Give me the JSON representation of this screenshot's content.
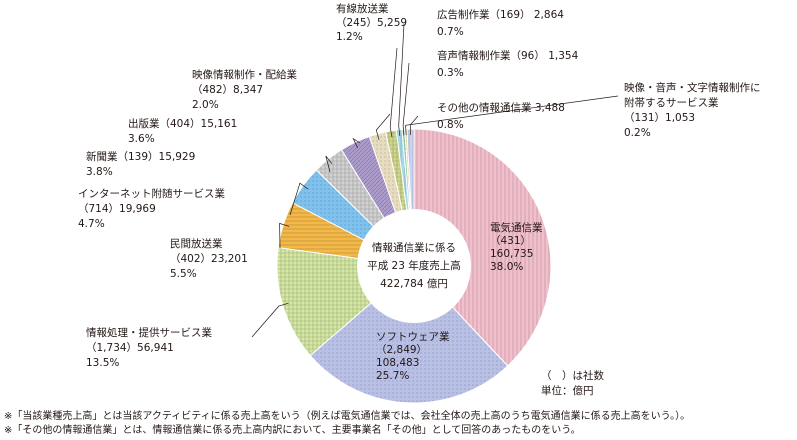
{
  "chart_data": {
    "type": "pie",
    "center_label": [
      "情報通信業に係る",
      "平成 23 年度売上高",
      "422,784 億円"
    ],
    "unit_note": [
      "（　）は社数",
      "単位：億円"
    ],
    "slices": [
      {
        "name": "電気通信業",
        "count": "（431）",
        "value": 160735,
        "value_text": "160,735",
        "percent": "38.0%",
        "color": "#f2bfcc"
      },
      {
        "name": "ソフトウェア業",
        "count": "（2,849）",
        "value": 108483,
        "value_text": "108,483",
        "percent": "25.7%",
        "color": "#b9c0e6"
      },
      {
        "name": "情報処理・提供サービス業",
        "count": "（1,734）",
        "value": 56941,
        "value_text": "56,941",
        "percent": "13.5%",
        "color": "#d5e8a4"
      },
      {
        "name": "民間放送業",
        "count": "（402）",
        "value": 23201,
        "value_text": "23,201",
        "percent": "5.5%",
        "color": "#f3b848"
      },
      {
        "name": "インターネット附随サービス業",
        "count": "（714）",
        "value": 19969,
        "value_text": "19,969",
        "percent": "4.7%",
        "color": "#7fc2ee"
      },
      {
        "name": "新聞業",
        "count": "（139）",
        "value": 15929,
        "value_text": "15,929",
        "percent": "3.8%",
        "color": "#d2d2d2"
      },
      {
        "name": "出版業",
        "count": "（404）",
        "value": 15161,
        "value_text": "15,161",
        "percent": "3.6%",
        "color": "#ab9ccb"
      },
      {
        "name": "映像情報制作・配給業",
        "count": "（482）",
        "value": 8347,
        "value_text": "8,347",
        "percent": "2.0%",
        "color": "#e8dcc0"
      },
      {
        "name": "有線放送業",
        "count": "（245）",
        "value": 5259,
        "value_text": "5,259",
        "percent": "1.2%",
        "color": "#cfd88c"
      },
      {
        "name": "広告制作業",
        "count": "（169）",
        "value": 2864,
        "value_text": "2,864",
        "percent": "0.7%",
        "color": "#a8d9e8"
      },
      {
        "name": "音声情報制作業",
        "count": "（96）",
        "value": 1354,
        "value_text": "1,354",
        "percent": "0.3%",
        "color": "#8fd0a8"
      },
      {
        "name": "映像・音声・文字情報制作に附帯するサービス業",
        "count": "（131）",
        "value": 1053,
        "value_text": "1,053",
        "percent": "0.2%",
        "color": "#f0d4a0"
      },
      {
        "name": "その他の情報通信業",
        "count": "",
        "value": 3488,
        "value_text": "3,488",
        "percent": "0.8%",
        "color": "#c8d4f0"
      }
    ]
  },
  "notes": [
    "※「当該業種売上高」とは当該アクティビティに係る売上高をいう（例えば電気通信業では、会社全体の売上高のうち電気通信業に係る売上高をいう。）。",
    "※「その他の情報通信業」とは、情報通信業に係る売上高内訳において、主要事業名「その他」として回答のあったものをいう。"
  ]
}
